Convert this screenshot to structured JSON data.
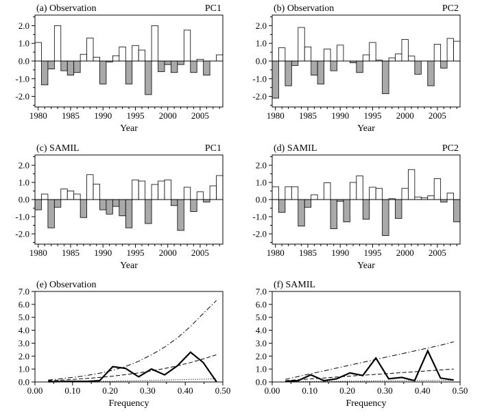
{
  "figure": {
    "panels": [
      {
        "id": "a",
        "type": "bar",
        "title_left": "(a)  Observation",
        "title_right": "PC1",
        "xlabel": "Year"
      },
      {
        "id": "b",
        "type": "bar",
        "title_left": "(b)  Observation",
        "title_right": "PC2",
        "xlabel": "Year"
      },
      {
        "id": "c",
        "type": "bar",
        "title_left": "(c)  SAMIL",
        "title_right": "PC1",
        "xlabel": "Year"
      },
      {
        "id": "d",
        "type": "bar",
        "title_left": "(d)  SAMIL",
        "title_right": "PC2",
        "xlabel": "Year"
      },
      {
        "id": "e",
        "type": "line",
        "title_left": "(e)  Observation",
        "title_right": "",
        "xlabel": "Frequency"
      },
      {
        "id": "f",
        "type": "line",
        "title_left": "(f)  SAMIL",
        "title_right": "",
        "xlabel": "Frequency"
      }
    ]
  },
  "colors": {
    "positive_bar": "#ffffff",
    "negative_bar": "#a9a9a9",
    "line": "#000000"
  },
  "chart_data": [
    {
      "type": "bar",
      "panel": "a",
      "x": [
        1980,
        1981,
        1982,
        1983,
        1984,
        1985,
        1986,
        1987,
        1988,
        1989,
        1990,
        1991,
        1992,
        1993,
        1994,
        1995,
        1996,
        1997,
        1998,
        1999,
        2000,
        2001,
        2002,
        2003,
        2004,
        2005,
        2006,
        2007,
        2008
      ],
      "values": [
        1.05,
        -1.35,
        -0.45,
        2.0,
        -0.55,
        -0.8,
        -0.65,
        0.38,
        1.3,
        0.22,
        -1.3,
        -0.05,
        0.3,
        0.8,
        -1.3,
        0.88,
        0.62,
        -1.9,
        2.0,
        -0.6,
        -0.2,
        -0.65,
        -0.2,
        1.75,
        -0.65,
        0.1,
        -0.8,
        0.0,
        0.35
      ],
      "ylim": [
        -2.6,
        2.6
      ],
      "yticks": [
        "-2.0",
        "-1.0",
        "0.0",
        "1.0",
        "2.0"
      ],
      "ytick_values": [
        -2,
        -1,
        0,
        1,
        2
      ],
      "xticks": [
        "1980",
        "1985",
        "1990",
        "1995",
        "2000",
        "2005"
      ],
      "xtick_values": [
        1980,
        1985,
        1990,
        1995,
        2000,
        2005
      ],
      "grid": false
    },
    {
      "type": "bar",
      "panel": "b",
      "x": [
        1980,
        1981,
        1982,
        1983,
        1984,
        1985,
        1986,
        1987,
        1988,
        1989,
        1990,
        1991,
        1992,
        1993,
        1994,
        1995,
        1996,
        1997,
        1998,
        1999,
        2000,
        2001,
        2002,
        2003,
        2004,
        2005,
        2006,
        2007,
        2008
      ],
      "values": [
        -2.1,
        0.75,
        -1.4,
        -0.25,
        1.9,
        0.8,
        -0.8,
        -1.3,
        0.68,
        -0.55,
        0.9,
        0.0,
        -0.1,
        -0.65,
        0.35,
        1.05,
        0.05,
        -1.85,
        0.18,
        0.4,
        1.22,
        0.28,
        -0.75,
        0.0,
        -1.4,
        0.95,
        -0.4,
        1.28,
        1.12
      ],
      "ylim": [
        -2.6,
        2.6
      ],
      "yticks": [
        "-2.0",
        "-1.0",
        "0.0",
        "1.0",
        "2.0"
      ],
      "ytick_values": [
        -2,
        -1,
        0,
        1,
        2
      ],
      "xticks": [
        "1980",
        "1985",
        "1990",
        "1995",
        "2000",
        "2005"
      ],
      "xtick_values": [
        1980,
        1985,
        1990,
        1995,
        2000,
        2005
      ],
      "grid": false
    },
    {
      "type": "bar",
      "panel": "c",
      "x": [
        1980,
        1981,
        1982,
        1983,
        1984,
        1985,
        1986,
        1987,
        1988,
        1989,
        1990,
        1991,
        1992,
        1993,
        1994,
        1995,
        1996,
        1997,
        1998,
        1999,
        2000,
        2001,
        2002,
        2003,
        2004,
        2005,
        2006,
        2007,
        2008
      ],
      "values": [
        -0.6,
        0.32,
        -1.65,
        -0.45,
        0.62,
        0.5,
        0.32,
        -1.05,
        1.45,
        0.9,
        -0.6,
        -0.85,
        -0.4,
        -0.95,
        -1.65,
        1.15,
        1.08,
        -1.4,
        0.88,
        1.08,
        1.15,
        -0.35,
        -1.8,
        0.72,
        -0.7,
        0.45,
        -0.15,
        0.8,
        1.4
      ],
      "ylim": [
        -2.6,
        2.6
      ],
      "yticks": [
        "-2.0",
        "-1.0",
        "0.0",
        "1.0",
        "2.0"
      ],
      "ytick_values": [
        -2,
        -1,
        0,
        1,
        2
      ],
      "xticks": [
        "1980",
        "1985",
        "1990",
        "1995",
        "2000",
        "2005"
      ],
      "xtick_values": [
        1980,
        1985,
        1990,
        1995,
        2000,
        2005
      ],
      "grid": false
    },
    {
      "type": "bar",
      "panel": "d",
      "x": [
        1980,
        1981,
        1982,
        1983,
        1984,
        1985,
        1986,
        1987,
        1988,
        1989,
        1990,
        1991,
        1992,
        1993,
        1994,
        1995,
        1996,
        1997,
        1998,
        1999,
        2000,
        2001,
        2002,
        2003,
        2004,
        2005,
        2006,
        2007,
        2008
      ],
      "values": [
        0.75,
        -0.75,
        0.75,
        0.75,
        -1.55,
        -0.45,
        0.28,
        0.0,
        0.98,
        -1.7,
        -0.1,
        -1.3,
        1.0,
        1.38,
        -1.15,
        0.72,
        0.65,
        -2.1,
        0.05,
        -1.1,
        0.65,
        1.75,
        0.15,
        0.1,
        0.22,
        1.22,
        -0.15,
        0.38,
        -1.3
      ],
      "ylim": [
        -2.6,
        2.6
      ],
      "yticks": [
        "-2.0",
        "-1.0",
        "0.0",
        "1.0",
        "2.0"
      ],
      "ytick_values": [
        -2,
        -1,
        0,
        1,
        2
      ],
      "xticks": [
        "1980",
        "1985",
        "1990",
        "1995",
        "2000",
        "2005"
      ],
      "xtick_values": [
        1980,
        1985,
        1990,
        1995,
        2000,
        2005
      ],
      "grid": false
    },
    {
      "type": "line",
      "panel": "e",
      "xlim": [
        0,
        0.5
      ],
      "ylim": [
        0,
        7
      ],
      "xticks": [
        "0.00",
        "0.10",
        "0.20",
        "0.30",
        "0.40",
        "0.50"
      ],
      "xtick_values": [
        0,
        0.1,
        0.2,
        0.3,
        0.4,
        0.5
      ],
      "yticks": [
        "0.0",
        "1.0",
        "2.0",
        "3.0",
        "4.0",
        "5.0",
        "6.0",
        "7.0"
      ],
      "ytick_values": [
        0,
        1,
        2,
        3,
        4,
        5,
        6,
        7
      ],
      "series": [
        {
          "style": "solid",
          "x": [
            0.035,
            0.069,
            0.103,
            0.138,
            0.172,
            0.207,
            0.241,
            0.276,
            0.31,
            0.345,
            0.379,
            0.414,
            0.448,
            0.483
          ],
          "y": [
            0.02,
            0.03,
            0.05,
            0.05,
            0.1,
            1.18,
            1.05,
            0.4,
            1.0,
            0.55,
            1.25,
            2.3,
            1.5,
            0.02
          ]
        },
        {
          "style": "dotted",
          "x": [
            0.035,
            0.069,
            0.103,
            0.138,
            0.172,
            0.207,
            0.241,
            0.276,
            0.31,
            0.345,
            0.379,
            0.414,
            0.448,
            0.483
          ],
          "y": [
            0.02,
            0.03,
            0.03,
            0.04,
            0.05,
            0.06,
            0.08,
            0.1,
            0.12,
            0.15,
            0.17,
            0.2,
            0.22,
            0.25
          ]
        },
        {
          "style": "dashed",
          "x": [
            0.035,
            0.069,
            0.103,
            0.138,
            0.172,
            0.207,
            0.241,
            0.276,
            0.31,
            0.345,
            0.379,
            0.414,
            0.448,
            0.483
          ],
          "y": [
            0.1,
            0.14,
            0.2,
            0.27,
            0.35,
            0.45,
            0.57,
            0.7,
            0.86,
            1.04,
            1.25,
            1.5,
            1.78,
            2.1
          ]
        },
        {
          "style": "dashdot",
          "x": [
            0.035,
            0.069,
            0.103,
            0.138,
            0.172,
            0.207,
            0.241,
            0.276,
            0.31,
            0.345,
            0.379,
            0.414,
            0.448,
            0.483
          ],
          "y": [
            0.15,
            0.25,
            0.36,
            0.5,
            0.68,
            0.9,
            1.2,
            1.6,
            2.1,
            2.7,
            3.4,
            4.3,
            5.3,
            6.3
          ]
        }
      ]
    },
    {
      "type": "line",
      "panel": "f",
      "xlim": [
        0,
        0.5
      ],
      "ylim": [
        0,
        7
      ],
      "xticks": [
        "0.00",
        "0.10",
        "0.20",
        "0.30",
        "0.40",
        "0.50"
      ],
      "xtick_values": [
        0,
        0.1,
        0.2,
        0.3,
        0.4,
        0.5
      ],
      "yticks": [
        "0.0",
        "1.0",
        "2.0",
        "3.0",
        "4.0",
        "5.0",
        "6.0",
        "7.0"
      ],
      "ytick_values": [
        0,
        1,
        2,
        3,
        4,
        5,
        6,
        7
      ],
      "series": [
        {
          "style": "solid",
          "x": [
            0.035,
            0.069,
            0.103,
            0.138,
            0.172,
            0.207,
            0.241,
            0.276,
            0.31,
            0.345,
            0.379,
            0.414,
            0.448,
            0.483
          ],
          "y": [
            0.05,
            0.1,
            0.55,
            0.1,
            0.25,
            0.7,
            0.5,
            1.85,
            0.25,
            0.35,
            0.1,
            2.4,
            0.3,
            0.15
          ]
        },
        {
          "style": "dotted",
          "x": [
            0.035,
            0.069,
            0.103,
            0.138,
            0.172,
            0.207,
            0.241,
            0.276,
            0.31,
            0.345,
            0.379,
            0.414,
            0.448,
            0.483
          ],
          "y": [
            0.02,
            0.03,
            0.04,
            0.05,
            0.05,
            0.06,
            0.07,
            0.08,
            0.09,
            0.1,
            0.1,
            0.11,
            0.12,
            0.12
          ]
        },
        {
          "style": "dashed",
          "x": [
            0.035,
            0.069,
            0.103,
            0.138,
            0.172,
            0.207,
            0.241,
            0.276,
            0.31,
            0.345,
            0.379,
            0.414,
            0.448,
            0.483
          ],
          "y": [
            0.1,
            0.17,
            0.24,
            0.31,
            0.38,
            0.45,
            0.52,
            0.59,
            0.65,
            0.72,
            0.79,
            0.86,
            0.93,
            1.0
          ]
        },
        {
          "style": "dashdot",
          "x": [
            0.035,
            0.069,
            0.103,
            0.138,
            0.172,
            0.207,
            0.241,
            0.276,
            0.31,
            0.345,
            0.379,
            0.414,
            0.448,
            0.483
          ],
          "y": [
            0.2,
            0.42,
            0.64,
            0.86,
            1.08,
            1.3,
            1.52,
            1.74,
            1.96,
            2.18,
            2.4,
            2.62,
            2.84,
            3.1
          ]
        }
      ]
    }
  ]
}
